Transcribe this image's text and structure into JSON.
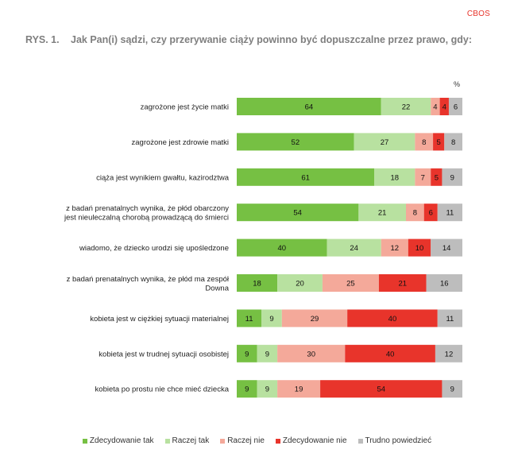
{
  "brand": "CBOS",
  "figure": {
    "number": "RYS. 1.",
    "title": "Jak Pan(i) sądzi, czy przerywanie ciąży powinno być dopuszczalne przez prawo, gdy:",
    "unit": "%"
  },
  "chart_data": {
    "type": "bar",
    "stacked": true,
    "orientation": "horizontal",
    "title": "Jak Pan(i) sądzi, czy przerywanie ciąży powinno być dopuszczalne przez prawo, gdy:",
    "unit": "%",
    "xlim": [
      0,
      100
    ],
    "grid": false,
    "legend_position": "bottom",
    "categories": [
      "zagrożone jest życie matki",
      "zagrożone jest zdrowie matki",
      "ciąża jest wynikiem gwałtu, kazirodztwa",
      "z badań prenatalnych wynika, że płód obarczony jest nieuleczalną chorobą prowadzącą do śmierci",
      "wiadomo, że dziecko urodzi się upośledzone",
      "z badań prenatalnych wynika, że płód ma zespół Downa",
      "kobieta jest w ciężkiej sytuacji materialnej",
      "kobieta jest w trudnej sytuacji osobistej",
      "kobieta po prostu nie chce mieć dziecka"
    ],
    "category_lines": [
      [
        "zagrożone jest życie matki"
      ],
      [
        "zagrożone jest zdrowie matki"
      ],
      [
        "ciąża jest wynikiem gwałtu, kazirodztwa"
      ],
      [
        "z badań prenatalnych wynika, że płód obarczony",
        "jest nieuleczalną chorobą prowadzącą do śmierci"
      ],
      [
        "wiadomo, że dziecko urodzi się upośledzone"
      ],
      [
        "z badań prenatalnych wynika, że płód ma zespół",
        "Downa"
      ],
      [
        "kobieta jest w ciężkiej sytuacji materialnej"
      ],
      [
        "kobieta jest w trudnej sytuacji osobistej"
      ],
      [
        "kobieta po prostu nie chce mieć dziecka"
      ]
    ],
    "series": [
      {
        "name": "Zdecydowanie tak",
        "color": "#76c043",
        "values": [
          64,
          52,
          61,
          54,
          40,
          18,
          11,
          9,
          9
        ]
      },
      {
        "name": "Raczej tak",
        "color": "#b8e1a0",
        "values": [
          22,
          27,
          18,
          21,
          24,
          20,
          9,
          9,
          9
        ]
      },
      {
        "name": "Raczej nie",
        "color": "#f4a99a",
        "values": [
          4,
          8,
          7,
          8,
          12,
          25,
          29,
          30,
          19
        ]
      },
      {
        "name": "Zdecydowanie nie",
        "color": "#e8342b",
        "values": [
          4,
          5,
          5,
          6,
          10,
          21,
          40,
          40,
          54
        ]
      },
      {
        "name": "Trudno powiedzieć",
        "color": "#bdbdbd",
        "values": [
          6,
          8,
          9,
          11,
          14,
          16,
          11,
          12,
          9
        ]
      }
    ]
  }
}
